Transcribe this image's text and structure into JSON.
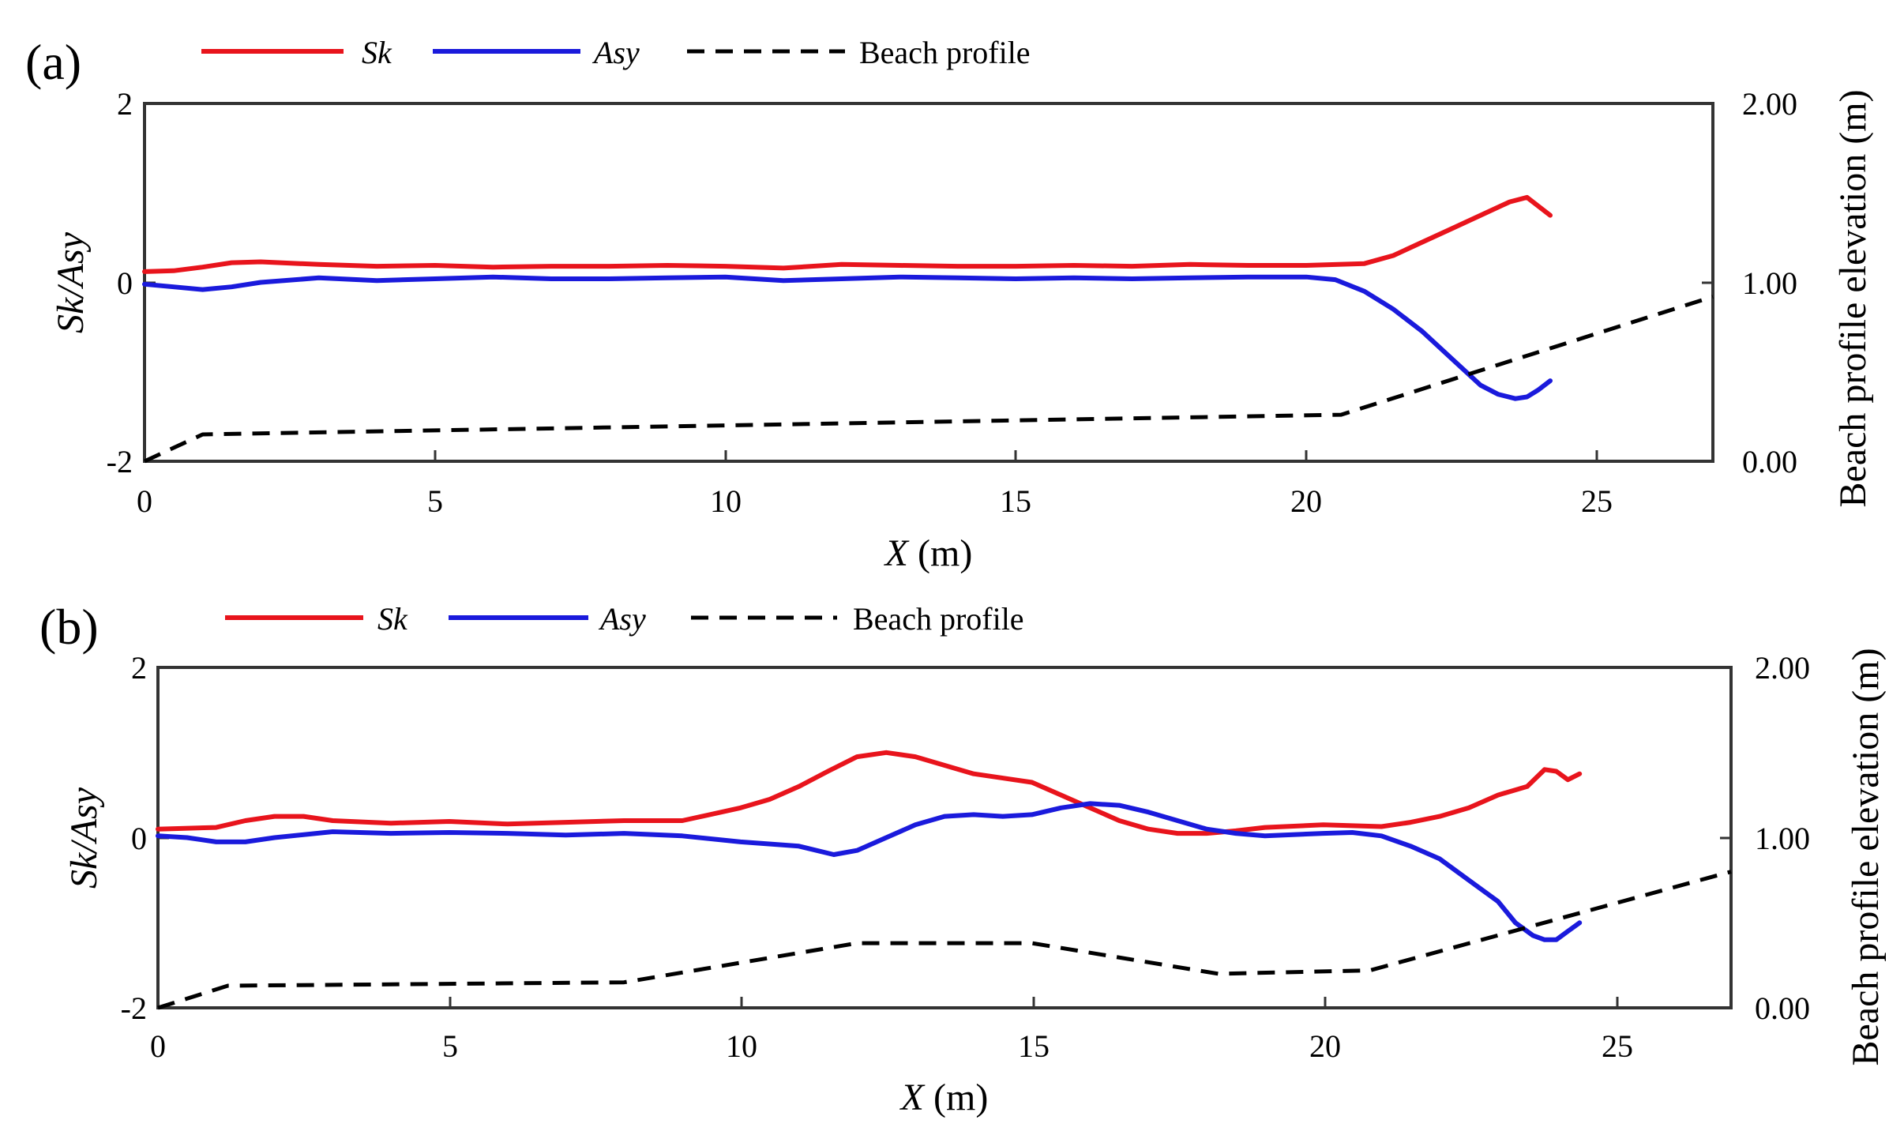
{
  "chart_data": [
    {
      "type": "line",
      "panel_label": "(a)",
      "xlabel": {
        "var": "X",
        "unit": " (m)"
      },
      "ylabel": "Sk/Asy",
      "ylabel_right": "Beach profile elevation (m)",
      "xlim": [
        0,
        27
      ],
      "ylim": [
        -2,
        2
      ],
      "ylim_right": [
        0,
        2
      ],
      "xticks": [
        "0",
        "5",
        "10",
        "15",
        "20",
        "25"
      ],
      "yticks": [
        "-2",
        "0",
        "2"
      ],
      "yticks_right": [
        "0.00",
        "1.00",
        "2.00"
      ],
      "legend": [
        {
          "label": "Sk",
          "italic": true,
          "color": "#e8141c",
          "style": "solid"
        },
        {
          "label": "Asy",
          "italic": true,
          "color": "#1a1adc",
          "style": "solid"
        },
        {
          "label": "Beach profile",
          "italic": false,
          "color": "#000000",
          "style": "dashed"
        }
      ],
      "series": [
        {
          "name": "Sk",
          "axis": "left",
          "color": "#e8141c",
          "x": [
            0,
            0.5,
            1,
            1.5,
            2,
            3,
            4,
            5,
            6,
            7,
            8,
            9,
            10,
            11,
            12,
            13,
            14,
            15,
            16,
            17,
            18,
            19,
            20,
            21,
            21.5,
            22,
            22.5,
            23,
            23.5,
            23.8,
            24,
            24.2
          ],
          "y": [
            0.12,
            0.13,
            0.17,
            0.22,
            0.23,
            0.2,
            0.18,
            0.19,
            0.17,
            0.18,
            0.18,
            0.19,
            0.18,
            0.16,
            0.2,
            0.19,
            0.18,
            0.18,
            0.19,
            0.18,
            0.2,
            0.19,
            0.19,
            0.21,
            0.3,
            0.45,
            0.6,
            0.75,
            0.9,
            0.95,
            0.85,
            0.75
          ]
        },
        {
          "name": "Asy",
          "axis": "left",
          "color": "#1a1adc",
          "x": [
            0,
            0.5,
            1,
            1.5,
            2,
            3,
            4,
            5,
            6,
            7,
            8,
            9,
            10,
            11,
            12,
            13,
            14,
            15,
            16,
            17,
            18,
            19,
            20,
            20.5,
            21,
            21.5,
            22,
            22.5,
            23,
            23.3,
            23.6,
            23.8,
            24,
            24.2
          ],
          "y": [
            -0.02,
            -0.05,
            -0.08,
            -0.05,
            0.0,
            0.05,
            0.02,
            0.04,
            0.06,
            0.04,
            0.04,
            0.05,
            0.06,
            0.02,
            0.04,
            0.06,
            0.05,
            0.04,
            0.05,
            0.04,
            0.05,
            0.06,
            0.06,
            0.03,
            -0.1,
            -0.3,
            -0.55,
            -0.85,
            -1.15,
            -1.25,
            -1.3,
            -1.28,
            -1.2,
            -1.1
          ]
        },
        {
          "name": "Beach profile",
          "axis": "right",
          "color": "#000000",
          "dashed": true,
          "x": [
            0,
            1,
            20.6,
            27
          ],
          "y": [
            0.0,
            0.15,
            0.26,
            0.92
          ]
        }
      ]
    },
    {
      "type": "line",
      "panel_label": "(b)",
      "xlabel": {
        "var": "X",
        "unit": " (m)"
      },
      "ylabel": "Sk/Asy",
      "ylabel_right": "Beach profile elevation (m)",
      "xlim": [
        0,
        27
      ],
      "ylim": [
        -2,
        2
      ],
      "ylim_right": [
        0,
        2
      ],
      "xticks": [
        "0",
        "5",
        "10",
        "15",
        "20",
        "25"
      ],
      "yticks": [
        "-2",
        "0",
        "2"
      ],
      "yticks_right": [
        "0.00",
        "1.00",
        "2.00"
      ],
      "legend": [
        {
          "label": "Sk",
          "italic": true,
          "color": "#e8141c",
          "style": "solid"
        },
        {
          "label": "Asy",
          "italic": true,
          "color": "#1a1adc",
          "style": "solid"
        },
        {
          "label": "Beach profile",
          "italic": false,
          "color": "#000000",
          "style": "dashed"
        }
      ],
      "series": [
        {
          "name": "Sk",
          "axis": "left",
          "color": "#e8141c",
          "x": [
            0,
            1,
            1.5,
            2,
            2.5,
            3,
            4,
            5,
            6,
            7,
            8,
            9,
            10,
            10.5,
            11,
            11.5,
            12,
            12.5,
            13,
            14,
            15,
            15.5,
            16,
            16.5,
            17,
            17.5,
            18,
            18.5,
            19,
            20,
            21,
            21.5,
            22,
            22.5,
            23,
            23.5,
            23.8,
            24,
            24.2,
            24.4
          ],
          "y": [
            0.1,
            0.12,
            0.2,
            0.25,
            0.25,
            0.2,
            0.17,
            0.19,
            0.16,
            0.18,
            0.2,
            0.2,
            0.35,
            0.45,
            0.6,
            0.78,
            0.95,
            1.0,
            0.95,
            0.75,
            0.65,
            0.5,
            0.35,
            0.2,
            0.1,
            0.05,
            0.05,
            0.08,
            0.12,
            0.15,
            0.13,
            0.18,
            0.25,
            0.35,
            0.5,
            0.6,
            0.8,
            0.78,
            0.68,
            0.75
          ]
        },
        {
          "name": "Asy",
          "axis": "left",
          "color": "#1a1adc",
          "x": [
            0,
            0.5,
            1,
            1.5,
            2,
            3,
            4,
            5,
            6,
            7,
            8,
            9,
            10,
            11,
            11.6,
            12,
            12.5,
            13,
            13.5,
            14,
            14.5,
            15,
            15.5,
            16,
            16.5,
            17,
            17.5,
            18,
            18.5,
            19,
            20,
            20.5,
            21,
            21.5,
            22,
            22.5,
            23,
            23.3,
            23.6,
            23.8,
            24,
            24.2,
            24.4
          ],
          "y": [
            0.02,
            0.0,
            -0.05,
            -0.05,
            0.0,
            0.07,
            0.05,
            0.06,
            0.05,
            0.03,
            0.05,
            0.02,
            -0.05,
            -0.1,
            -0.2,
            -0.15,
            0.0,
            0.15,
            0.25,
            0.27,
            0.25,
            0.27,
            0.35,
            0.4,
            0.38,
            0.3,
            0.2,
            0.1,
            0.05,
            0.02,
            0.05,
            0.06,
            0.02,
            -0.1,
            -0.25,
            -0.5,
            -0.75,
            -1.0,
            -1.15,
            -1.2,
            -1.2,
            -1.1,
            -1.0
          ]
        },
        {
          "name": "Beach profile",
          "axis": "right",
          "color": "#000000",
          "dashed": true,
          "x": [
            0,
            1.2,
            8,
            12,
            15,
            18.2,
            20.8,
            27
          ],
          "y": [
            0.0,
            0.13,
            0.15,
            0.38,
            0.38,
            0.2,
            0.22,
            0.8
          ]
        }
      ]
    }
  ]
}
